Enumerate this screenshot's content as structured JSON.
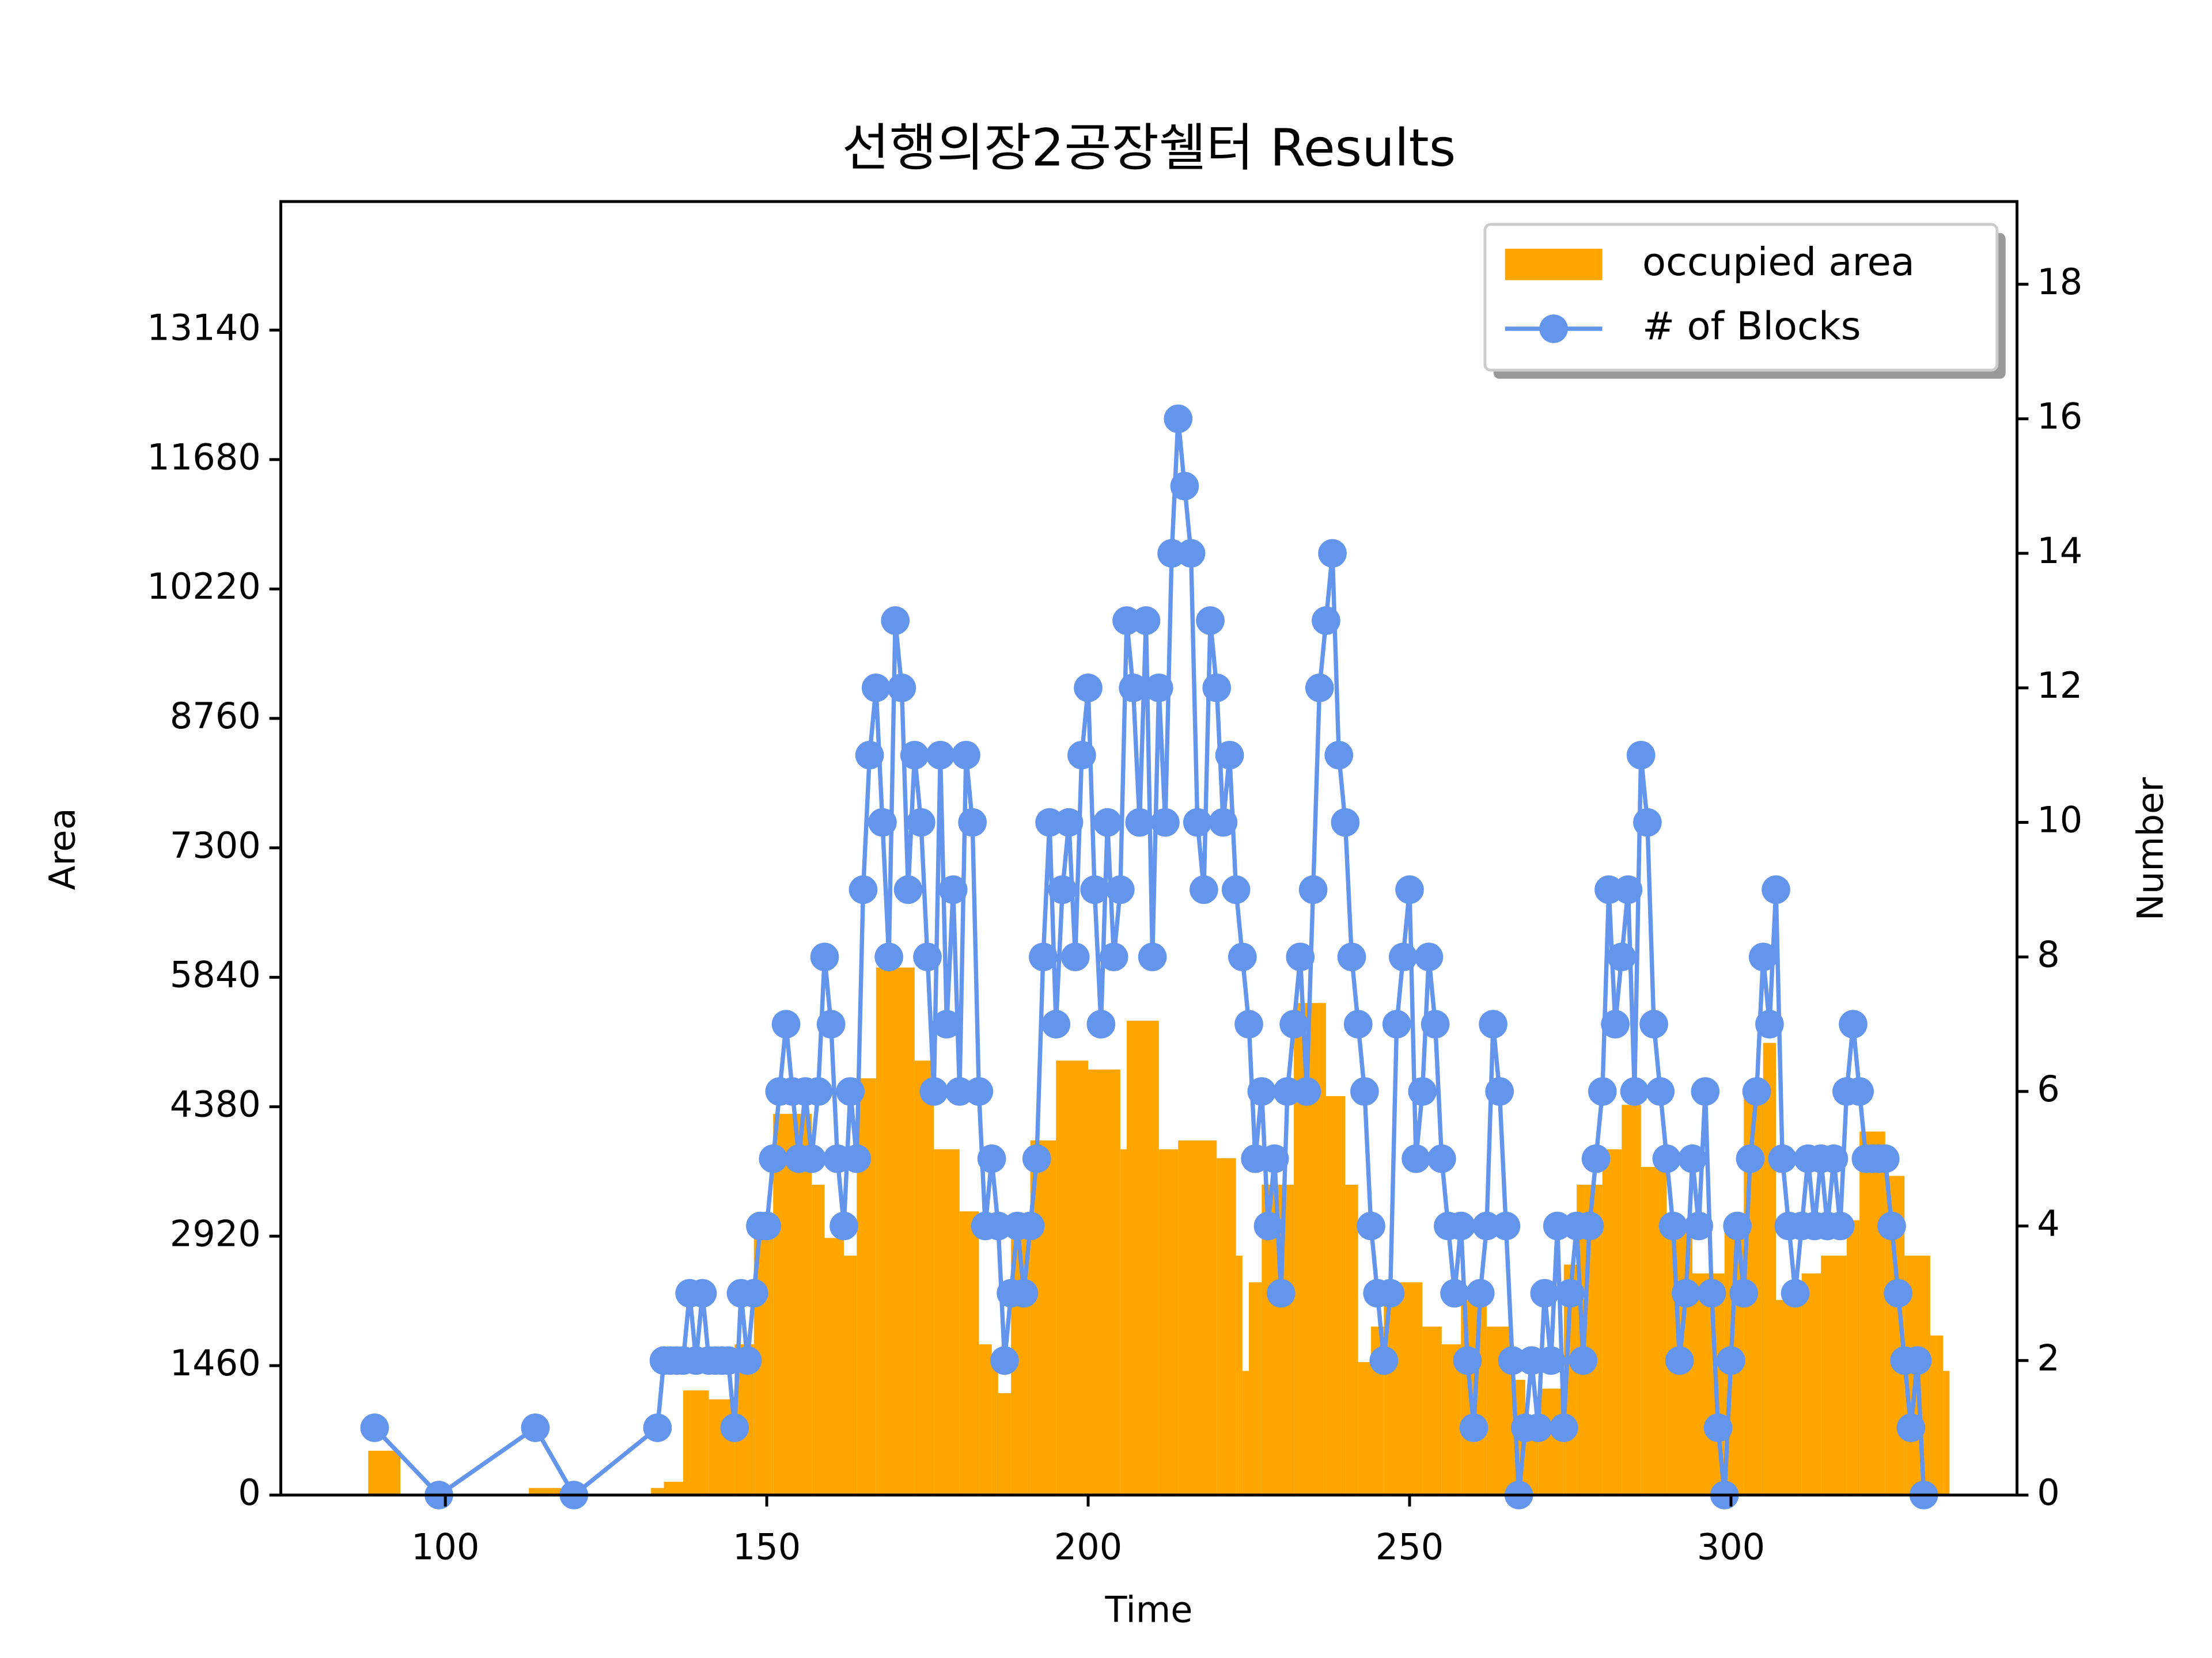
{
  "chart_data": {
    "type": "combo",
    "title": "선행의장2공장쉘터 Results",
    "x_label": "Time",
    "y_label": "Area",
    "y2_label": "Number",
    "xlim": [
      74.4,
      344.5
    ],
    "xticks": [
      100,
      150,
      200,
      250,
      300
    ],
    "ylim": [
      0,
      14590
    ],
    "yticks": [
      0,
      1460,
      2920,
      4380,
      5840,
      7300,
      8760,
      10220,
      11680,
      13140
    ],
    "y2lim": [
      0,
      19.23
    ],
    "y2ticks": [
      0,
      2,
      4,
      6,
      8,
      10,
      12,
      14,
      16,
      18
    ],
    "legend": "upper right",
    "series": [
      {
        "name": "occupied area",
        "color": "#ffa500",
        "bins": [
          88,
          93,
          113,
          118,
          132,
          134,
          137,
          141,
          145,
          148,
          151,
          157,
          159,
          162,
          164,
          167,
          173,
          176,
          180,
          183,
          185,
          186,
          188,
          191,
          195,
          200,
          205,
          206,
          211,
          214,
          220,
          223,
          224,
          225,
          227,
          232,
          237,
          240,
          242,
          244,
          246,
          252,
          255,
          258,
          262,
          266,
          268,
          270,
          274,
          276,
          280,
          283,
          286,
          290,
          294,
          299,
          302,
          305,
          307,
          311,
          314,
          318,
          320,
          324,
          327,
          331,
          333,
          334
        ],
        "values": [
          500,
          0,
          80,
          0,
          80,
          150,
          1180,
          1080,
          1700,
          3000,
          4300,
          3500,
          2900,
          2700,
          4700,
          5950,
          4900,
          3900,
          3200,
          1700,
          1500,
          1150,
          3000,
          4000,
          4900,
          4800,
          3900,
          5350,
          3900,
          4000,
          3800,
          2700,
          1400,
          2400,
          3500,
          5550,
          4500,
          3500,
          1500,
          1900,
          2400,
          1900,
          1700,
          2200,
          1900,
          1300,
          700,
          1200,
          2600,
          3500,
          3900,
          4400,
          3700,
          3000,
          2500,
          3000,
          4500,
          5100,
          2200,
          2500,
          2700,
          3100,
          4100,
          3600,
          2700,
          1800,
          1400
        ]
      },
      {
        "name": "# of Blocks",
        "color": "#6495ed",
        "axis": "y2",
        "x": [
          89,
          99,
          114,
          120,
          133,
          134,
          135,
          136,
          137,
          138,
          139,
          140,
          141,
          142,
          143,
          144,
          145,
          146,
          147,
          148,
          149,
          150,
          151,
          152,
          153,
          154,
          155,
          156,
          157,
          158,
          159,
          160,
          161,
          162,
          163,
          164,
          165,
          166,
          167,
          168,
          169,
          170,
          171,
          172,
          173,
          174,
          175,
          176,
          177,
          178,
          179,
          180,
          181,
          182,
          183,
          184,
          185,
          186,
          187,
          188,
          189,
          190,
          191,
          192,
          193,
          194,
          195,
          196,
          197,
          198,
          199,
          200,
          201,
          202,
          203,
          204,
          205,
          206,
          207,
          208,
          209,
          210,
          211,
          212,
          213,
          214,
          215,
          216,
          217,
          218,
          219,
          220,
          221,
          222,
          223,
          224,
          225,
          226,
          227,
          228,
          229,
          230,
          231,
          232,
          233,
          234,
          235,
          236,
          237,
          238,
          239,
          240,
          241,
          242,
          243,
          244,
          245,
          246,
          247,
          248,
          249,
          250,
          251,
          252,
          253,
          254,
          255,
          256,
          257,
          258,
          259,
          260,
          261,
          262,
          263,
          264,
          265,
          266,
          267,
          268,
          269,
          270,
          271,
          272,
          273,
          274,
          275,
          276,
          277,
          278,
          279,
          280,
          281,
          282,
          283,
          284,
          285,
          286,
          287,
          288,
          289,
          290,
          291,
          292,
          293,
          294,
          295,
          296,
          297,
          298,
          299,
          300,
          301,
          302,
          303,
          304,
          305,
          306,
          307,
          308,
          309,
          310,
          311,
          312,
          313,
          314,
          315,
          316,
          317,
          318,
          319,
          320,
          321,
          322,
          323,
          324,
          325,
          326,
          327,
          328,
          329,
          330
        ],
        "values": [
          1,
          0,
          1,
          0,
          1,
          2,
          2,
          2,
          2,
          3,
          2,
          3,
          2,
          2,
          2,
          2,
          1,
          3,
          2,
          3,
          4,
          4,
          5,
          6,
          7,
          6,
          5,
          6,
          5,
          6,
          8,
          7,
          5,
          4,
          6,
          5,
          9,
          11,
          12,
          10,
          8,
          13,
          12,
          9,
          11,
          10,
          8,
          6,
          11,
          7,
          9,
          6,
          11,
          10,
          6,
          4,
          5,
          4,
          2,
          3,
          4,
          3,
          4,
          5,
          8,
          10,
          7,
          9,
          10,
          8,
          11,
          12,
          9,
          7,
          10,
          8,
          9,
          13,
          12,
          10,
          13,
          8,
          12,
          10,
          14,
          16,
          15,
          14,
          10,
          9,
          13,
          12,
          10,
          11,
          9,
          8,
          7,
          5,
          6,
          4,
          5,
          3,
          6,
          7,
          8,
          6,
          9,
          12,
          13,
          14,
          11,
          10,
          8,
          7,
          6,
          4,
          3,
          2,
          3,
          7,
          8,
          9,
          5,
          6,
          8,
          7,
          5,
          4,
          3,
          4,
          2,
          1,
          3,
          4,
          7,
          6,
          4,
          2,
          0,
          1,
          2,
          1,
          3,
          2,
          4,
          1,
          3,
          4,
          2,
          4,
          5,
          6,
          9,
          7,
          8,
          9,
          6,
          11,
          10,
          7,
          6,
          5,
          4,
          2,
          3,
          5,
          4,
          6,
          3,
          1,
          0,
          2,
          4,
          3,
          5,
          6,
          8,
          7,
          9,
          5,
          4,
          3,
          4,
          5,
          4,
          5,
          4,
          5,
          4,
          6,
          7,
          6,
          5,
          5,
          5,
          5,
          4,
          3,
          2,
          1,
          2,
          0
        ]
      }
    ]
  }
}
